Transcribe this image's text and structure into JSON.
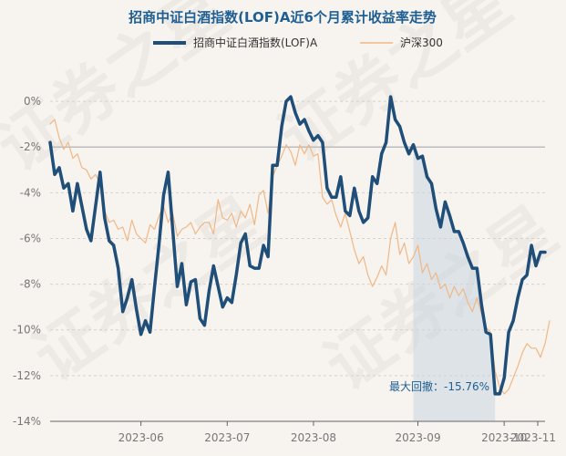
{
  "chart_data": {
    "type": "line",
    "title": "招商中证白酒指数(LOF)A近6个月累计收益率走势",
    "ylim": [
      -14,
      1
    ],
    "yticks": [
      0,
      -2,
      -4,
      -6,
      -8,
      -10,
      -12,
      -14
    ],
    "ytick_labels": [
      "0%",
      "-2%",
      "-4%",
      "-6%",
      "-8%",
      "-10%",
      "-12%",
      "-14%"
    ],
    "xticks": [
      "2023-06",
      "2023-07",
      "2023-08",
      "2023-09",
      "2023-10",
      "2023-11"
    ],
    "grid": "horizontal-dashed",
    "legend_position": "top-center",
    "series": [
      {
        "name": "招商中证白酒指数(LOF)A",
        "color": "#1f4e79",
        "values": [
          -1.8,
          -3.2,
          -2.9,
          -3.8,
          -3.6,
          -4.8,
          -3.6,
          -4.6,
          -5.6,
          -6.1,
          -4.6,
          -3.1,
          -5.1,
          -6.1,
          -6.3,
          -7.3,
          -9.2,
          -8.6,
          -7.8,
          -9.1,
          -10.2,
          -9.6,
          -10.1,
          -8.1,
          -6.2,
          -4.1,
          -3.1,
          -5.6,
          -8.1,
          -7.1,
          -8.9,
          -7.9,
          -7.8,
          -9.5,
          -9.8,
          -8.3,
          -7.2,
          -8.1,
          -9.0,
          -8.6,
          -8.8,
          -7.6,
          -6.2,
          -5.8,
          -7.2,
          -7.3,
          -7.3,
          -6.3,
          -6.8,
          -2.8,
          -2.8,
          -1.1,
          0.0,
          0.2,
          -0.5,
          -1.0,
          -0.8,
          -1.3,
          -1.7,
          -1.5,
          -1.8,
          -3.8,
          -4.2,
          -4.2,
          -3.3,
          -4.8,
          -5.0,
          -3.8,
          -4.8,
          -5.3,
          -5.1,
          -3.3,
          -3.6,
          -2.3,
          -1.8,
          0.2,
          -0.8,
          -1.1,
          -1.8,
          -2.3,
          -1.9,
          -2.5,
          -2.4,
          -3.3,
          -3.6,
          -4.7,
          -5.5,
          -4.4,
          -5.0,
          -5.7,
          -5.7,
          -6.2,
          -6.8,
          -7.3,
          -7.3,
          -8.9,
          -10.1,
          -10.2,
          -12.8,
          -12.8,
          -12.1,
          -10.1,
          -9.6,
          -8.6,
          -7.8,
          -7.6,
          -6.3,
          -7.2,
          -6.6,
          -6.6
        ]
      },
      {
        "name": "沪深300",
        "color": "#f0b887",
        "values": [
          -1.0,
          -0.8,
          -1.6,
          -2.1,
          -1.8,
          -2.5,
          -2.3,
          -2.9,
          -3.0,
          -3.4,
          -3.2,
          -3.6,
          -4.8,
          -5.3,
          -5.2,
          -5.6,
          -5.5,
          -6.1,
          -5.2,
          -5.8,
          -6.0,
          -6.2,
          -5.4,
          -5.6,
          -5.0,
          -4.6,
          -5.3,
          -4.9,
          -5.9,
          -5.6,
          -5.5,
          -5.3,
          -5.8,
          -5.5,
          -5.3,
          -5.3,
          -5.8,
          -4.3,
          -5.1,
          -5.2,
          -4.9,
          -5.5,
          -4.8,
          -5.1,
          -4.5,
          -5.4,
          -4.1,
          -3.9,
          -4.9,
          -3.3,
          -2.8,
          -2.4,
          -1.9,
          -2.2,
          -2.8,
          -1.9,
          -2.3,
          -1.9,
          -2.4,
          -2.3,
          -4.2,
          -4.5,
          -4.3,
          -5.0,
          -5.5,
          -4.9,
          -5.7,
          -6.5,
          -7.1,
          -6.8,
          -7.6,
          -8.1,
          -7.7,
          -7.2,
          -7.6,
          -6.0,
          -5.3,
          -6.7,
          -6.2,
          -7.1,
          -6.8,
          -6.3,
          -7.5,
          -7.1,
          -7.8,
          -7.5,
          -8.2,
          -8.0,
          -8.6,
          -8.1,
          -8.5,
          -8.2,
          -8.8,
          -9.2,
          -8.6,
          -9.3,
          -9.9,
          -10.1,
          -11.8,
          -12.5,
          -12.8,
          -12.6,
          -12.1,
          -11.6,
          -11.0,
          -10.6,
          -10.8,
          -10.8,
          -11.2,
          -10.6,
          -9.6
        ]
      }
    ],
    "highlight_band": {
      "from_category": "2023-09",
      "to_min": true
    },
    "annotation": "最大回撤：-15.76%",
    "watermark_text": "证券之星"
  }
}
